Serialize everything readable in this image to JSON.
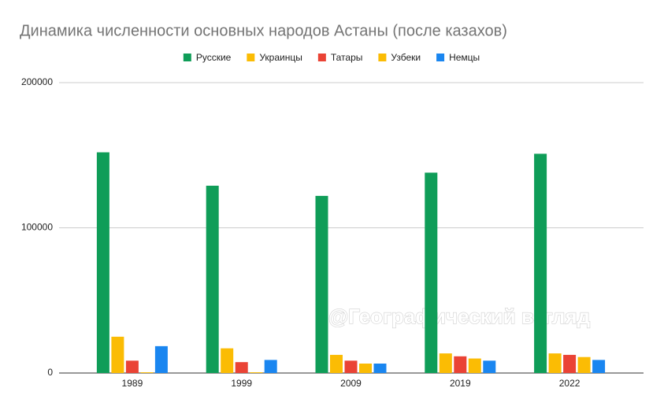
{
  "chart_data": {
    "type": "bar",
    "title": "Динамика численности основных народов Астаны (после казахов)",
    "watermark": "@Географический взгляд",
    "categories": [
      "1989",
      "1999",
      "2009",
      "2019",
      "2022"
    ],
    "series": [
      {
        "name": "Русские",
        "color": "#0f9d58",
        "values": [
          152000,
          129000,
          122000,
          138000,
          151000
        ]
      },
      {
        "name": "Украинцы",
        "color": "#fbbc04",
        "values": [
          25000,
          17000,
          12500,
          13500,
          13500
        ]
      },
      {
        "name": "Татары",
        "color": "#ea4335",
        "values": [
          8500,
          7500,
          8500,
          11500,
          12500
        ]
      },
      {
        "name": "Узбеки",
        "color": "#fbbc04",
        "values": [
          500,
          500,
          6500,
          10000,
          11000
        ]
      },
      {
        "name": "Немцы",
        "color": "#1a86f0",
        "values": [
          18500,
          9000,
          6500,
          8500,
          9000
        ]
      }
    ],
    "ylim": [
      0,
      200000
    ],
    "yticks": [
      0,
      100000,
      200000
    ],
    "grid": true,
    "legend": "top"
  }
}
